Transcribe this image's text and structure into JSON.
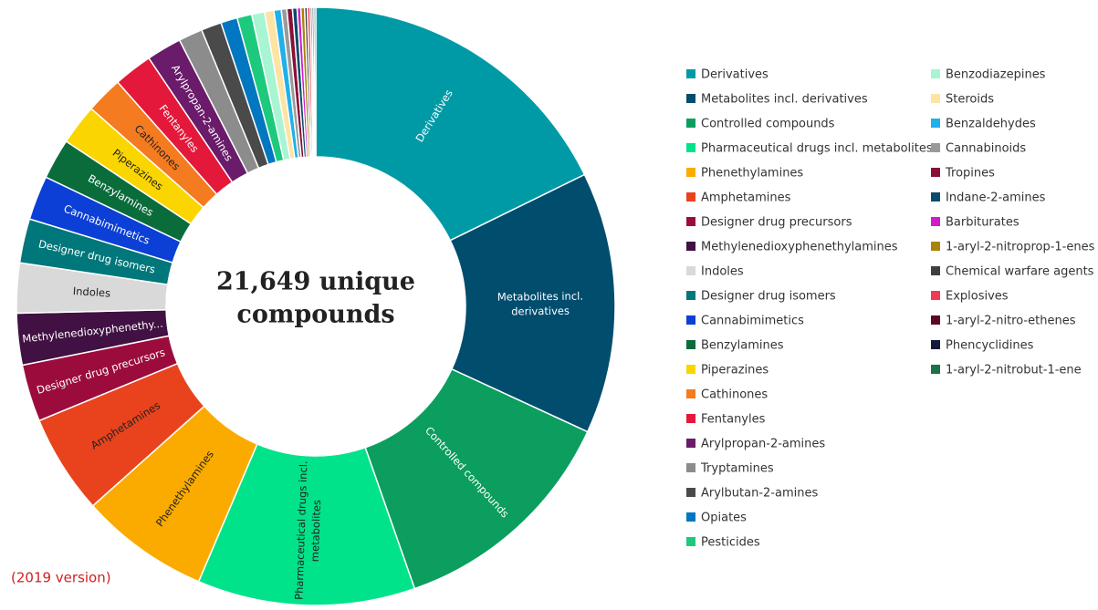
{
  "chart_data": {
    "type": "pie",
    "center_text": [
      "21,649 unique",
      "compounds"
    ],
    "footnote": "(2019 version)",
    "categories": [
      "Derivatives",
      "Metabolites incl. derivatives",
      "Controlled compounds",
      "Pharmaceutical drugs incl. metabolites",
      "Phenethylamines",
      "Amphetamines",
      "Designer drug precursors",
      "Methylenedioxyphenethylamines",
      "Indoles",
      "Designer drug isomers",
      "Cannabimimetics",
      "Benzylamines",
      "Piperazines",
      "Cathinones",
      "Fentanyles",
      "Arylpropan-2-amines",
      "Tryptamines",
      "Arylbutan-2-amines",
      "Opiates",
      "Pesticides",
      "Benzodiazepines",
      "Steroids",
      "Benzaldehydes",
      "Cannabinoids",
      "Tropines",
      "Indane-2-amines",
      "Barbiturates",
      "1-aryl-2-nitroprop-1-enes",
      "Chemical warfare agents",
      "Explosives",
      "1-aryl-2-nitro-ethenes",
      "Phencyclidines",
      "1-aryl-2-nitrobut-1-ene"
    ],
    "values": [
      17.8,
      14.2,
      12.8,
      11.8,
      7.0,
      5.4,
      3.1,
      2.8,
      2.7,
      2.4,
      2.4,
      2.2,
      2.2,
      2.0,
      2.1,
      1.9,
      1.3,
      1.1,
      0.9,
      0.8,
      0.7,
      0.5,
      0.4,
      0.3,
      0.3,
      0.25,
      0.2,
      0.2,
      0.15,
      0.15,
      0.1,
      0.1,
      0.1
    ],
    "colors": [
      "#009aa6",
      "#004d6e",
      "#0b9e5e",
      "#00e38a",
      "#fbab00",
      "#e9431d",
      "#9b0c3c",
      "#401142",
      "#d9d9d9",
      "#00777a",
      "#0b3fd6",
      "#0b6c3b",
      "#fad500",
      "#f57b20",
      "#e4183a",
      "#6a1b6a",
      "#8c8c8c",
      "#4a4a4a",
      "#0077c0",
      "#1dc97c",
      "#a8f5d3",
      "#fde4a3",
      "#20b0ea",
      "#9a9a9a",
      "#8b1036",
      "#0c4a6e",
      "#d21cc9",
      "#a88408",
      "#3f3f3f",
      "#ef3b55",
      "#5b0a22",
      "#12193b",
      "#1c7346"
    ],
    "slice_labels": [
      "Derivatives",
      "Metabolites incl. derivatives",
      "Controlled compounds",
      "Pharmaceutical drugs incl. metabolites",
      "Phenethylamines",
      "Amphetamines",
      "Designer drug precursors",
      "Methylenedioxyphenethy...",
      "Indoles",
      "Designer drug isomers",
      "Cannabimimetics",
      "Benzylamines",
      "Piperazines",
      "Cathinones",
      "Fentanyles",
      "Arylpropan-2-amines",
      null,
      null,
      null,
      null,
      null,
      null,
      null,
      null,
      null,
      null,
      null,
      null,
      null,
      null,
      null,
      null,
      null
    ]
  }
}
